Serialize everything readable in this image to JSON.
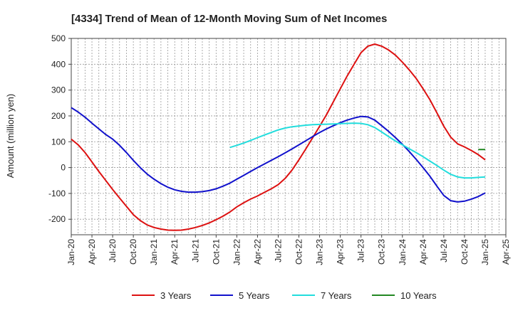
{
  "chart_data": {
    "type": "line",
    "title": "[4334]  Trend of Mean of 12-Month Moving Sum of Net Incomes",
    "xlabel": "",
    "ylabel": "Amount (million yen)",
    "ylim": [
      -260,
      500
    ],
    "y_ticks": [
      -200,
      -100,
      0,
      100,
      200,
      300,
      400,
      500
    ],
    "x_ticks": [
      "Jan-20",
      "Apr-20",
      "Jul-20",
      "Oct-20",
      "Jan-21",
      "Apr-21",
      "Jul-21",
      "Oct-21",
      "Jan-22",
      "Apr-22",
      "Jul-22",
      "Oct-22",
      "Jan-23",
      "Apr-23",
      "Jul-23",
      "Oct-23",
      "Jan-24",
      "Apr-24",
      "Jul-24",
      "Oct-24",
      "Jan-25",
      "Apr-25"
    ],
    "grid": true,
    "legend_position": "bottom",
    "series": [
      {
        "name": "3 Years",
        "color": "#dd1111",
        "x": [
          "2020-01",
          "2020-02",
          "2020-03",
          "2020-04",
          "2020-05",
          "2020-06",
          "2020-07",
          "2020-08",
          "2020-09",
          "2020-10",
          "2020-11",
          "2020-12",
          "2021-01",
          "2021-02",
          "2021-03",
          "2021-04",
          "2021-05",
          "2021-06",
          "2021-07",
          "2021-08",
          "2021-09",
          "2021-10",
          "2021-11",
          "2021-12",
          "2022-01",
          "2022-02",
          "2022-03",
          "2022-04",
          "2022-05",
          "2022-06",
          "2022-07",
          "2022-08",
          "2022-09",
          "2022-10",
          "2022-11",
          "2022-12",
          "2023-01",
          "2023-02",
          "2023-03",
          "2023-04",
          "2023-05",
          "2023-06",
          "2023-07",
          "2023-08",
          "2023-09",
          "2023-10",
          "2023-11",
          "2023-12",
          "2024-01",
          "2024-02",
          "2024-03",
          "2024-04",
          "2024-05",
          "2024-06",
          "2024-07",
          "2024-08",
          "2024-09",
          "2024-10",
          "2024-11",
          "2024-12",
          "2025-01"
        ],
        "values": [
          110,
          88,
          58,
          22,
          -15,
          -50,
          -85,
          -118,
          -150,
          -182,
          -205,
          -222,
          -232,
          -238,
          -242,
          -243,
          -242,
          -238,
          -232,
          -224,
          -214,
          -202,
          -188,
          -172,
          -152,
          -136,
          -122,
          -110,
          -96,
          -82,
          -66,
          -42,
          -10,
          30,
          72,
          116,
          160,
          205,
          255,
          305,
          355,
          400,
          445,
          470,
          478,
          470,
          455,
          435,
          408,
          378,
          345,
          305,
          262,
          212,
          160,
          118,
          92,
          80,
          66,
          50,
          30
        ]
      },
      {
        "name": "5 Years",
        "color": "#1111cc",
        "x": [
          "2020-01",
          "2020-02",
          "2020-03",
          "2020-04",
          "2020-05",
          "2020-06",
          "2020-07",
          "2020-08",
          "2020-09",
          "2020-10",
          "2020-11",
          "2020-12",
          "2021-01",
          "2021-02",
          "2021-03",
          "2021-04",
          "2021-05",
          "2021-06",
          "2021-07",
          "2021-08",
          "2021-09",
          "2021-10",
          "2021-11",
          "2021-12",
          "2022-01",
          "2022-02",
          "2022-03",
          "2022-04",
          "2022-05",
          "2022-06",
          "2022-07",
          "2022-08",
          "2022-09",
          "2022-10",
          "2022-11",
          "2022-12",
          "2023-01",
          "2023-02",
          "2023-03",
          "2023-04",
          "2023-05",
          "2023-06",
          "2023-07",
          "2023-08",
          "2023-09",
          "2023-10",
          "2023-11",
          "2023-12",
          "2024-01",
          "2024-02",
          "2024-03",
          "2024-04",
          "2024-05",
          "2024-06",
          "2024-07",
          "2024-08",
          "2024-09",
          "2024-10",
          "2024-11",
          "2024-12",
          "2025-01"
        ],
        "values": [
          232,
          215,
          195,
          172,
          150,
          128,
          110,
          86,
          58,
          28,
          0,
          -25,
          -45,
          -62,
          -76,
          -86,
          -92,
          -95,
          -95,
          -93,
          -89,
          -82,
          -72,
          -60,
          -45,
          -30,
          -15,
          0,
          14,
          28,
          42,
          57,
          72,
          88,
          104,
          120,
          136,
          150,
          162,
          174,
          184,
          192,
          198,
          196,
          184,
          162,
          140,
          116,
          90,
          62,
          32,
          0,
          -34,
          -72,
          -108,
          -128,
          -133,
          -130,
          -122,
          -112,
          -98
        ]
      },
      {
        "name": "7 Years",
        "color": "#22dddd",
        "x": [
          "2021-12",
          "2022-01",
          "2022-02",
          "2022-03",
          "2022-04",
          "2022-05",
          "2022-06",
          "2022-07",
          "2022-08",
          "2022-09",
          "2022-10",
          "2022-11",
          "2022-12",
          "2023-01",
          "2023-02",
          "2023-03",
          "2023-04",
          "2023-05",
          "2023-06",
          "2023-07",
          "2023-08",
          "2023-09",
          "2023-10",
          "2023-11",
          "2023-12",
          "2024-01",
          "2024-02",
          "2024-03",
          "2024-04",
          "2024-05",
          "2024-06",
          "2024-07",
          "2024-08",
          "2024-09",
          "2024-10",
          "2024-11",
          "2024-12",
          "2025-01"
        ],
        "values": [
          78,
          86,
          95,
          105,
          116,
          126,
          136,
          146,
          153,
          158,
          161,
          164,
          166,
          167,
          168,
          169,
          170,
          171,
          172,
          171,
          166,
          155,
          138,
          120,
          103,
          88,
          73,
          58,
          42,
          25,
          8,
          -10,
          -26,
          -36,
          -40,
          -40,
          -38,
          -36
        ]
      },
      {
        "name": "10 Years",
        "color": "#228822",
        "x": [
          "2024-12",
          "2025-01"
        ],
        "values": [
          70,
          70
        ]
      }
    ]
  }
}
